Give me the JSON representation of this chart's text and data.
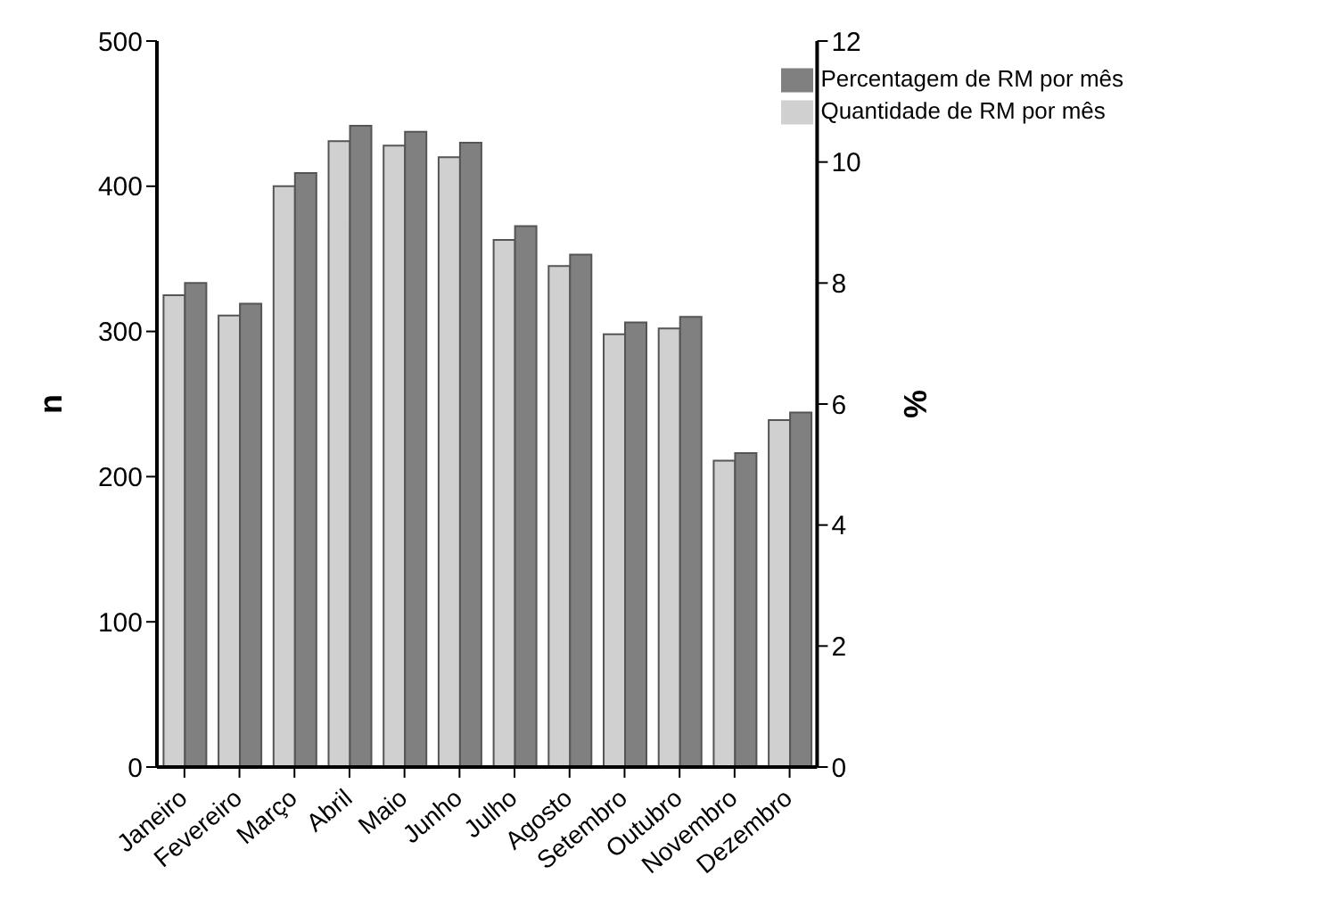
{
  "chart_data": {
    "type": "bar",
    "xlabel": null,
    "ylabel": "n",
    "y2label": "%",
    "categories": [
      "Janeiro",
      "Fevereiro",
      "Março",
      "Abril",
      "Maio",
      "Junho",
      "Julho",
      "Agosto",
      "Setembro",
      "Outubro",
      "Novembro",
      "Dezembro"
    ],
    "series": [
      {
        "name": "Quantidade de RM por mês",
        "color": "#d0d0d0",
        "values": [
          325,
          311,
          400,
          431,
          428,
          420,
          363,
          345,
          298,
          302,
          211,
          239
        ]
      },
      {
        "name": "Percentagem de RM por mês",
        "color": "#808080",
        "axis": "y2",
        "values": [
          8.0,
          7.66,
          9.82,
          10.6,
          10.5,
          10.32,
          8.94,
          8.47,
          7.35,
          7.44,
          5.19,
          5.86
        ]
      }
    ],
    "ylim": [
      0,
      500
    ],
    "yticks": [
      0,
      100,
      200,
      300,
      400,
      500
    ],
    "y2lim": [
      0,
      12
    ],
    "y2ticks": [
      0,
      2,
      4,
      6,
      8,
      10,
      12
    ],
    "grid": false,
    "legend": "top right"
  }
}
